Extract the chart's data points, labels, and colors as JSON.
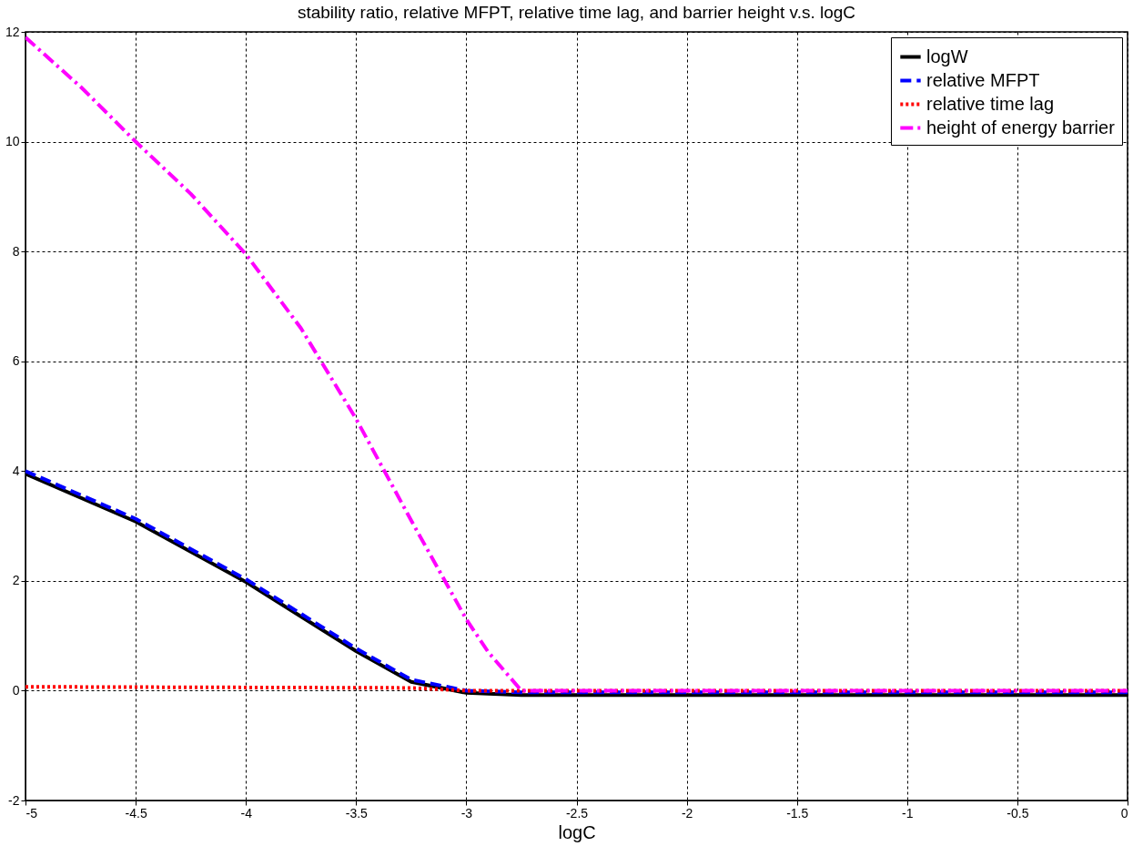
{
  "chart_data": {
    "type": "line",
    "title": "stability ratio, relative MFPT, relative time lag, and barrier height  v.s.   logC",
    "xlabel": "logC",
    "xlim": [
      -5,
      0
    ],
    "xticks": [
      -5,
      -4.5,
      -4,
      -3.5,
      -3,
      -2.5,
      -2,
      -1.5,
      -1,
      -0.5,
      0
    ],
    "ylim": [
      -2,
      12
    ],
    "yticks": [
      -2,
      0,
      2,
      4,
      6,
      8,
      10,
      12
    ],
    "grid": true,
    "legend": "top right",
    "series": [
      {
        "name": "logW",
        "color": "#000000",
        "line_style": "solid",
        "x": [
          -5,
          -4.5,
          -4,
          -3.5,
          -3.25,
          -3,
          -2.75,
          0
        ],
        "values": [
          3.95,
          3.08,
          1.98,
          0.72,
          0.16,
          -0.04,
          -0.08,
          -0.08
        ]
      },
      {
        "name": "relative MFPT",
        "color": "#0000ff",
        "line_style": "dashed",
        "x": [
          -5,
          -4.5,
          -4,
          -3.5,
          -3.25,
          -3,
          -2.75,
          0
        ],
        "values": [
          4.0,
          3.13,
          2.03,
          0.77,
          0.2,
          0.0,
          -0.03,
          -0.03
        ]
      },
      {
        "name": "relative time lag",
        "color": "#ff0000",
        "line_style": "dotted",
        "x": [
          -5,
          -3.25,
          -3,
          0
        ],
        "values": [
          0.07,
          0.05,
          0.0,
          0.0
        ]
      },
      {
        "name": "height of energy barrier",
        "color": "#ff00ff",
        "line_style": "dashdot",
        "x": [
          -5,
          -4.75,
          -4.5,
          -4.25,
          -4,
          -3.75,
          -3.5,
          -3.25,
          -3,
          -2.9,
          -2.75,
          0
        ],
        "values": [
          11.9,
          11.0,
          10.0,
          9.05,
          7.95,
          6.6,
          4.95,
          3.1,
          1.3,
          0.7,
          0.0,
          0.0
        ]
      }
    ]
  }
}
